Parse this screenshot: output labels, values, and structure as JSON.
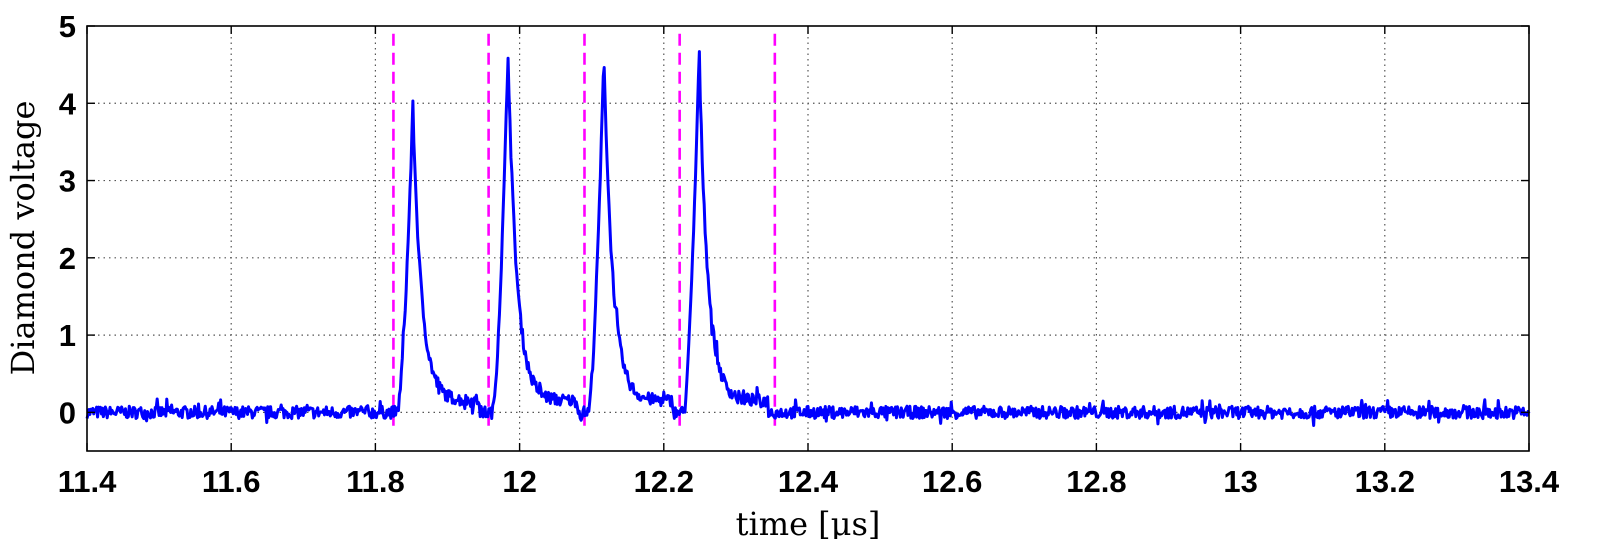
{
  "chart_data": {
    "type": "line",
    "title": "",
    "xlabel": "time [μs]",
    "ylabel": "Diamond voltage",
    "xlim": [
      11.4,
      13.4
    ],
    "ylim": [
      -0.5,
      5
    ],
    "xticks": [
      11.4,
      11.6,
      11.8,
      12.0,
      12.2,
      12.4,
      12.6,
      12.8,
      13.0,
      13.2,
      13.4
    ],
    "xtick_labels": [
      "11.4",
      "11.6",
      "11.8",
      "12",
      "12.2",
      "12.4",
      "12.6",
      "12.8",
      "13",
      "13.2",
      "13.4"
    ],
    "yticks": [
      0,
      1,
      2,
      3,
      4,
      5
    ],
    "ytick_labels": [
      "0",
      "1",
      "2",
      "3",
      "4",
      "5"
    ],
    "grid": true,
    "series": [
      {
        "color": "#0000ff",
        "baseline": 0.0,
        "noise_amplitude": 0.08,
        "pulses": [
          {
            "start": 11.83,
            "peak_time": 11.852,
            "peak": 3.95,
            "floor_until": 11.945,
            "floor": 0.15
          },
          {
            "start": 11.962,
            "peak_time": 11.984,
            "peak": 4.65,
            "floor_until": 12.08,
            "floor": 0.15
          },
          {
            "start": 12.095,
            "peak_time": 12.117,
            "peak": 4.65,
            "floor_until": 12.212,
            "floor": 0.15
          },
          {
            "start": 12.227,
            "peak_time": 12.249,
            "peak": 4.65,
            "floor_until": 12.345,
            "floor": 0.15
          }
        ]
      }
    ],
    "markers": {
      "style": "dashed",
      "color": "#ff00ff",
      "x": [
        11.825,
        11.957,
        12.09,
        12.222,
        12.354
      ]
    }
  }
}
